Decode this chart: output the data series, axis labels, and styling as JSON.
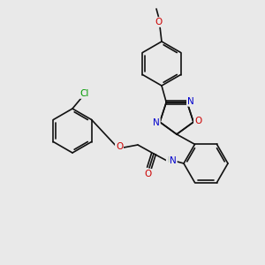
{
  "bg_color": "#e9e9e9",
  "bond_color": "#111111",
  "atom_colors": {
    "O": "#cc0000",
    "N": "#0000cc",
    "Cl": "#009900",
    "H": "#557777"
  },
  "figsize": [
    3.0,
    3.0
  ],
  "dpi": 100
}
